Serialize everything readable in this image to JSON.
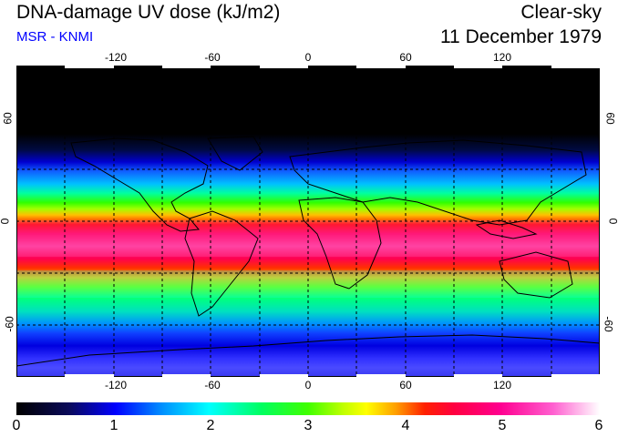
{
  "header": {
    "title": "DNA-damage UV dose (kJ/m2)",
    "source": "MSR - KNMI",
    "condition": "Clear-sky",
    "date": "11 December 1979"
  },
  "map": {
    "longitude_labels": [
      "-120",
      "-60",
      "0",
      "60",
      "120"
    ],
    "latitude_labels": [
      "60",
      "0",
      "-60"
    ]
  },
  "colorbar": {
    "ticks": [
      "0",
      "1",
      "2",
      "3",
      "4",
      "5",
      "6"
    ]
  },
  "colors": {
    "subtitle": "#0000ff",
    "grid": "#000000"
  }
}
